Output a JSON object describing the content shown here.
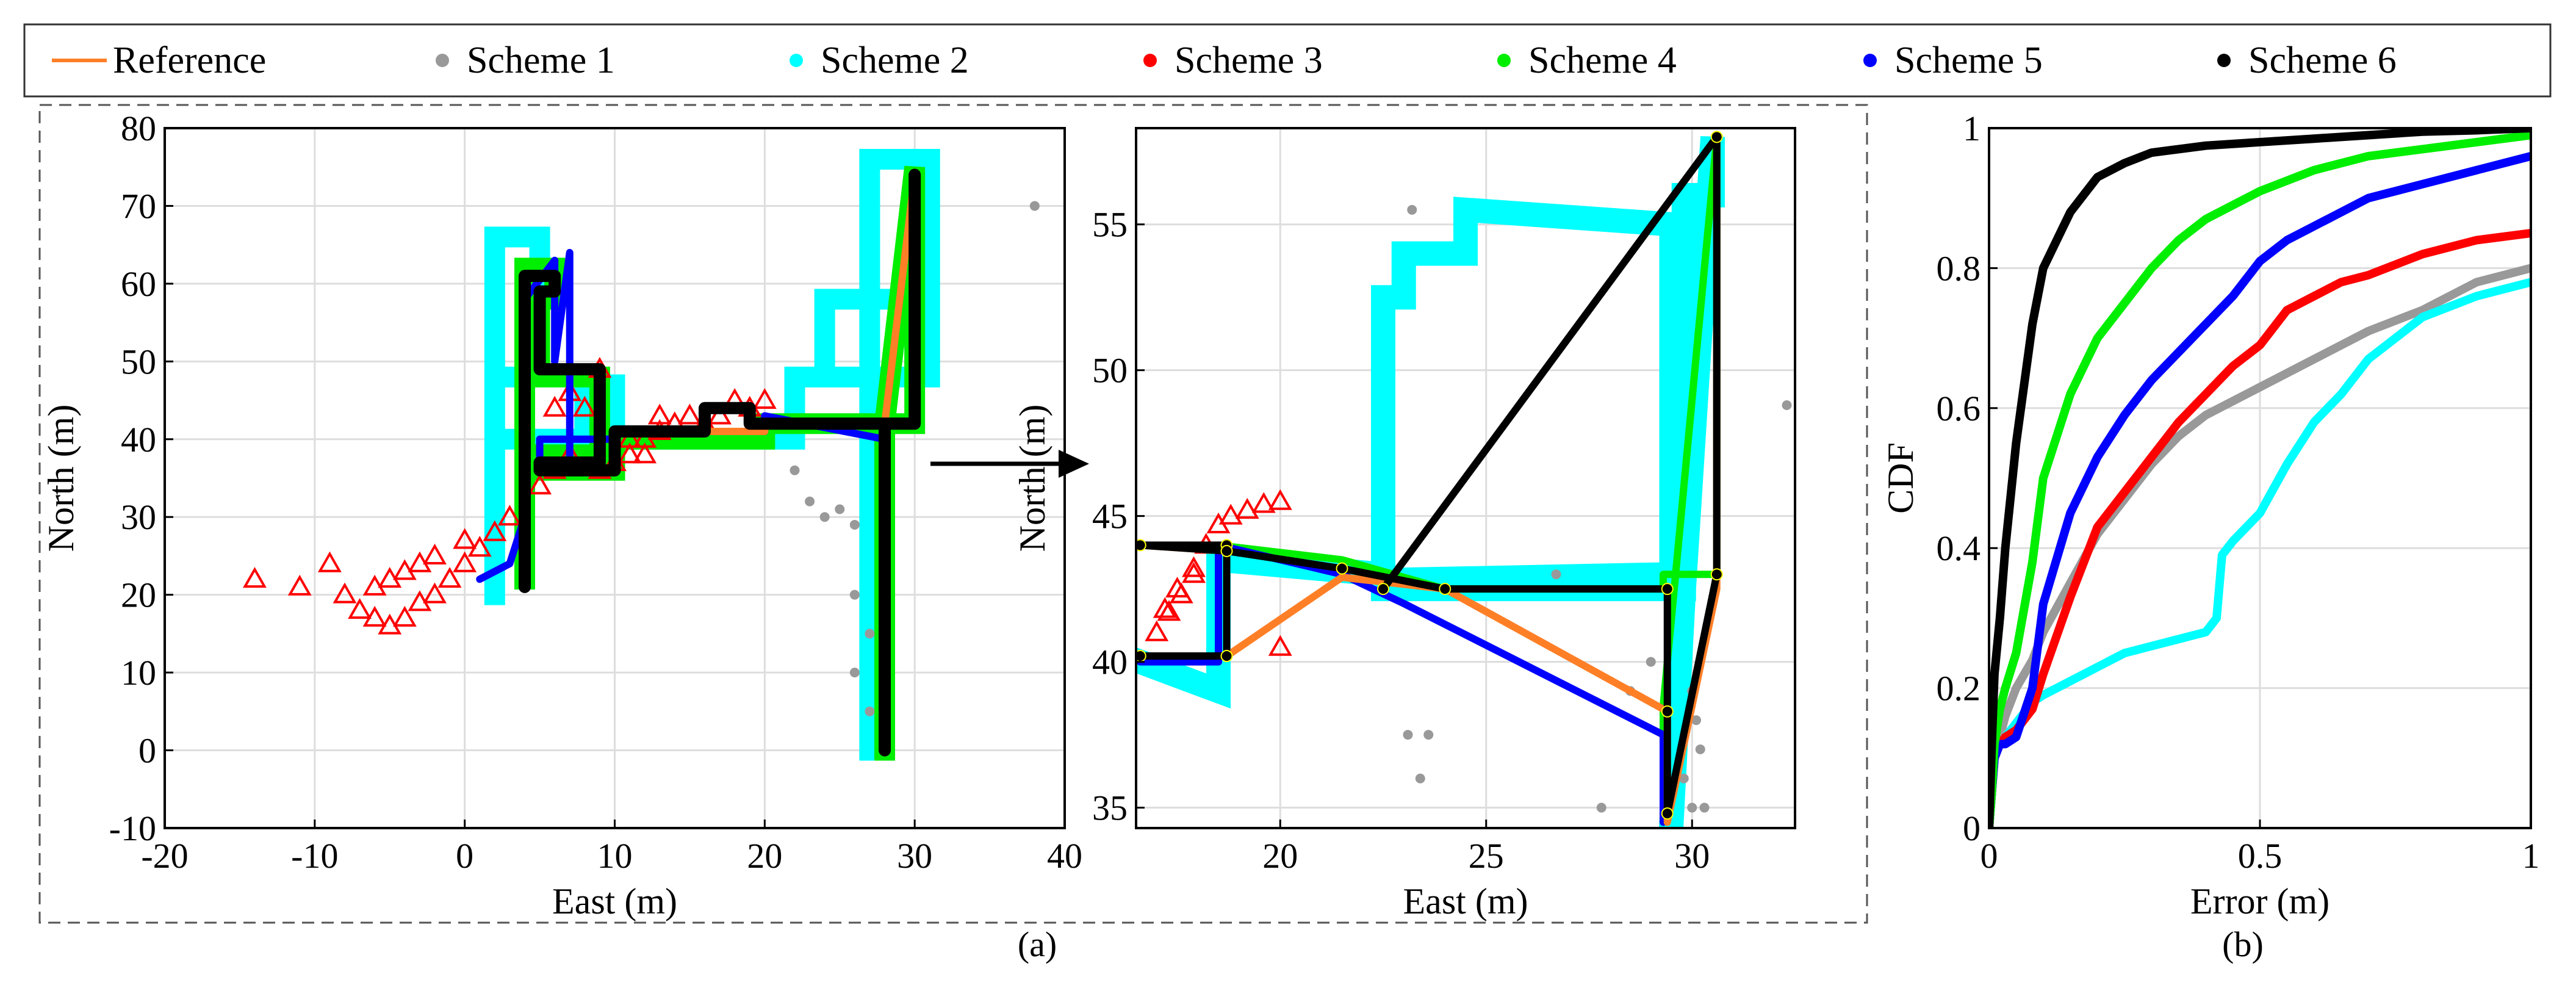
{
  "legend": {
    "entries": [
      {
        "label": "Reference",
        "color": "#ff7f27",
        "marker": "line"
      },
      {
        "label": "Scheme 1",
        "color": "#999999",
        "marker": "dot"
      },
      {
        "label": "Scheme 2",
        "color": "#00ffff",
        "marker": "dot"
      },
      {
        "label": "Scheme 3",
        "color": "#ff0000",
        "marker": "dot"
      },
      {
        "label": "Scheme 4",
        "color": "#00ee00",
        "marker": "dot"
      },
      {
        "label": "Scheme 5",
        "color": "#0000ff",
        "marker": "dot"
      },
      {
        "label": "Scheme 6",
        "color": "#000000",
        "marker": "dot"
      }
    ]
  },
  "panels": {
    "a_label": "(a)",
    "b_label": "(b)"
  },
  "chart_data": [
    {
      "id": "trajectory-full",
      "type": "scatter",
      "xlabel": "East (m)",
      "ylabel": "North (m)",
      "xlim": [
        -20,
        40
      ],
      "ylim": [
        -10,
        80
      ],
      "xticks": [
        -20,
        -10,
        0,
        10,
        20,
        30,
        40
      ],
      "yticks": [
        -10,
        0,
        10,
        20,
        30,
        40,
        50,
        60,
        70,
        80
      ],
      "grid": true,
      "series": [
        {
          "name": "Scheme 2",
          "color": "#00ffff",
          "style": "thick",
          "x": [
            2,
            2,
            5,
            5,
            4,
            4,
            2,
            2,
            8,
            8,
            10,
            10,
            5,
            5,
            10,
            10,
            22,
            22,
            30,
            30,
            24,
            24,
            31,
            31,
            27,
            27
          ],
          "y": [
            20,
            66,
            66,
            60,
            60,
            48,
            48,
            40,
            40,
            47,
            47,
            40,
            40,
            38,
            38,
            40,
            40,
            48,
            48,
            58,
            58,
            48,
            48,
            76,
            76,
            0
          ]
        },
        {
          "name": "Scheme 4",
          "color": "#00ee00",
          "style": "thick",
          "x": [
            4,
            4,
            6,
            6,
            5,
            5,
            9,
            9,
            5,
            5,
            10,
            10,
            20,
            20,
            30,
            30,
            28,
            28
          ],
          "y": [
            22,
            62,
            62,
            58,
            58,
            48,
            48,
            38,
            38,
            36,
            36,
            40,
            40,
            42,
            42,
            75,
            42,
            0
          ]
        },
        {
          "name": "Scheme 3",
          "color": "#ff0000",
          "style": "triangle",
          "x": [
            -14,
            -11,
            -9,
            -8,
            -7,
            -6,
            -5,
            -4,
            -3,
            -2,
            -1,
            0,
            1,
            2,
            3,
            5,
            6,
            7,
            8,
            9,
            11,
            12,
            13,
            14,
            15,
            16,
            17,
            18,
            19,
            20,
            -6,
            -5,
            -4,
            -3,
            -2,
            0,
            6,
            7,
            9,
            10,
            11,
            12,
            13
          ],
          "y": [
            22,
            21,
            24,
            20,
            18,
            17,
            16,
            17,
            19,
            20,
            22,
            24,
            26,
            28,
            30,
            34,
            36,
            38,
            44,
            49,
            40,
            38,
            41,
            42,
            43,
            42,
            43,
            45,
            44,
            45,
            21,
            22,
            23,
            24,
            25,
            27,
            44,
            46,
            36,
            37,
            38,
            40,
            43
          ]
        },
        {
          "name": "Scheme 5",
          "color": "#0000ff",
          "style": "line",
          "x": [
            1,
            3,
            4,
            4,
            6,
            6,
            7,
            7,
            5,
            5,
            10,
            10,
            20,
            20,
            28,
            28
          ],
          "y": [
            22,
            24,
            30,
            58,
            63,
            50,
            64,
            36,
            36,
            40,
            40,
            41,
            41,
            43,
            40,
            0
          ]
        },
        {
          "name": "Scheme 1",
          "color": "#999999",
          "style": "dot",
          "x": [
            38,
            30,
            22,
            23,
            24,
            25,
            26,
            26,
            27,
            27,
            28,
            26
          ],
          "y": [
            70,
            49,
            36,
            32,
            30,
            31,
            29,
            20,
            15,
            5,
            0,
            10
          ]
        },
        {
          "name": "Reference",
          "color": "#ff7f27",
          "style": "line",
          "x": [
            4,
            4,
            6,
            6,
            5,
            5,
            9,
            9,
            5,
            5,
            10,
            10,
            20,
            20,
            30,
            30,
            28,
            28
          ],
          "y": [
            21,
            61,
            61,
            59,
            59,
            49,
            49,
            37,
            37,
            36,
            36,
            41,
            41,
            42,
            42,
            74,
            42,
            0
          ]
        },
        {
          "name": "Scheme 6",
          "color": "#000000",
          "style": "line",
          "x": [
            4,
            4,
            6,
            6,
            5,
            5,
            9,
            9,
            5,
            5,
            10,
            10,
            16,
            16,
            19,
            19,
            20,
            20,
            30,
            30,
            30,
            28,
            28
          ],
          "y": [
            21,
            61,
            61,
            59,
            59,
            49,
            49,
            37,
            37,
            36,
            36,
            41,
            41,
            44,
            44,
            42,
            42,
            42,
            42,
            74,
            42,
            42,
            0
          ]
        }
      ]
    },
    {
      "id": "trajectory-zoom",
      "type": "scatter",
      "xlabel": "East (m)",
      "ylabel": "North (m)",
      "xlim": [
        16.5,
        32.5
      ],
      "ylim": [
        34.3,
        58.3
      ],
      "xticks": [
        20,
        25,
        30
      ],
      "yticks": [
        35,
        40,
        45,
        50,
        55
      ],
      "grid": true,
      "series": [
        {
          "name": "Scheme 2",
          "color": "#00ffff",
          "style": "thick",
          "x": [
            16.6,
            18.5,
            18.5,
            22.5,
            22.5,
            23.0,
            23.0,
            24.5,
            24.5,
            29.5,
            29.5,
            22.5,
            22.5,
            29.8,
            29.8,
            30.5,
            30.5,
            29.8,
            29.5
          ],
          "y": [
            40.0,
            39.0,
            43.5,
            43.0,
            52.5,
            52.5,
            54.0,
            54.0,
            55.5,
            55.0,
            43.0,
            42.8,
            42.5,
            42.5,
            56.0,
            56.0,
            58.0,
            42.5,
            34.5
          ]
        },
        {
          "name": "Scheme 1",
          "color": "#999999",
          "style": "dot",
          "x": [
            32.3,
            23.2,
            23.6,
            26.7,
            23.1,
            23.4,
            30.0,
            30.1,
            30.2,
            29.8,
            30.3,
            30.0,
            27.8,
            28.5,
            29.0
          ],
          "y": [
            48.8,
            55.5,
            37.5,
            43.0,
            37.5,
            36.0,
            39.0,
            38.0,
            37.0,
            36.0,
            35.0,
            35.0,
            35.0,
            39.0,
            40.0
          ]
        },
        {
          "name": "Scheme 3",
          "color": "#ff0000",
          "style": "triangle",
          "x": [
            17.0,
            17.3,
            17.6,
            17.9,
            18.2,
            18.5,
            18.8,
            19.2,
            19.6,
            20.0,
            17.2,
            17.5,
            17.9,
            20.0
          ],
          "y": [
            41.0,
            41.7,
            42.3,
            43.2,
            44.0,
            44.7,
            45.0,
            45.2,
            45.4,
            45.5,
            41.8,
            42.5,
            43.0,
            40.5
          ]
        },
        {
          "name": "Scheme 4",
          "color": "#00ee00",
          "style": "line",
          "x": [
            16.6,
            18.5,
            18.5,
            21.5,
            24.0,
            29.3,
            29.3,
            30.6,
            30.6,
            29.3,
            29.3
          ],
          "y": [
            40.2,
            40.2,
            44.0,
            43.5,
            42.5,
            42.5,
            43.0,
            43.0,
            58.0,
            38.5,
            34.5
          ]
        },
        {
          "name": "Scheme 5",
          "color": "#0000ff",
          "style": "line",
          "x": [
            16.6,
            18.5,
            18.5,
            21.5,
            23.0,
            29.3,
            29.3
          ],
          "y": [
            40.0,
            40.0,
            44.0,
            43.0,
            42.0,
            37.5,
            34.5
          ]
        },
        {
          "name": "Reference",
          "color": "#ff7f27",
          "style": "line",
          "x": [
            16.6,
            18.7,
            18.7,
            21.5,
            24.0,
            29.4,
            29.4,
            30.6,
            30.6
          ],
          "y": [
            44.0,
            43.8,
            40.2,
            42.9,
            42.5,
            38.3,
            34.5,
            42.5,
            58.0
          ]
        },
        {
          "name": "Scheme 6",
          "color": "#000000",
          "style": "dotted",
          "x": [
            16.6,
            18.7,
            18.7,
            16.6,
            18.7,
            21.5,
            24.0,
            29.4,
            29.4,
            29.4,
            30.6,
            30.6,
            22.5
          ],
          "y": [
            40.2,
            40.2,
            44.0,
            44.0,
            43.8,
            43.2,
            42.5,
            42.5,
            38.3,
            34.8,
            43.0,
            58.0,
            42.5
          ]
        }
      ]
    },
    {
      "id": "error-cdf",
      "type": "line",
      "xlabel": "Error (m)",
      "ylabel": "CDF",
      "xlim": [
        0,
        1
      ],
      "ylim": [
        0,
        1
      ],
      "xticks": [
        0,
        0.5,
        1
      ],
      "yticks": [
        0,
        0.2,
        0.4,
        0.6,
        0.8,
        1
      ],
      "grid": true,
      "series": [
        {
          "name": "Scheme 1",
          "color": "#999999",
          "x": [
            0,
            0.005,
            0.01,
            0.02,
            0.03,
            0.05,
            0.08,
            0.1,
            0.15,
            0.2,
            0.25,
            0.3,
            0.35,
            0.4,
            0.5,
            0.6,
            0.7,
            0.8,
            0.9,
            1.0
          ],
          "y": [
            0,
            0.05,
            0.1,
            0.13,
            0.16,
            0.2,
            0.24,
            0.28,
            0.35,
            0.42,
            0.47,
            0.52,
            0.56,
            0.59,
            0.63,
            0.67,
            0.71,
            0.74,
            0.78,
            0.8
          ]
        },
        {
          "name": "Scheme 2",
          "color": "#00ffff",
          "x": [
            0,
            0.005,
            0.01,
            0.02,
            0.05,
            0.08,
            0.1,
            0.15,
            0.2,
            0.25,
            0.3,
            0.35,
            0.4,
            0.42,
            0.43,
            0.45,
            0.5,
            0.55,
            0.6,
            0.65,
            0.7,
            0.8,
            0.9,
            1.0
          ],
          "y": [
            0,
            0.05,
            0.1,
            0.12,
            0.15,
            0.18,
            0.19,
            0.21,
            0.23,
            0.25,
            0.26,
            0.27,
            0.28,
            0.3,
            0.39,
            0.41,
            0.45,
            0.52,
            0.58,
            0.62,
            0.67,
            0.73,
            0.76,
            0.78
          ]
        },
        {
          "name": "Scheme 3",
          "color": "#ff0000",
          "x": [
            0,
            0.005,
            0.01,
            0.02,
            0.03,
            0.05,
            0.08,
            0.1,
            0.15,
            0.2,
            0.25,
            0.3,
            0.35,
            0.4,
            0.45,
            0.5,
            0.55,
            0.6,
            0.65,
            0.7,
            0.8,
            0.9,
            1.0
          ],
          "y": [
            0,
            0.05,
            0.1,
            0.12,
            0.13,
            0.14,
            0.17,
            0.22,
            0.33,
            0.43,
            0.48,
            0.53,
            0.58,
            0.62,
            0.66,
            0.69,
            0.74,
            0.76,
            0.78,
            0.79,
            0.82,
            0.84,
            0.85
          ]
        },
        {
          "name": "Scheme 5",
          "color": "#0000ff",
          "x": [
            0,
            0.005,
            0.01,
            0.02,
            0.03,
            0.05,
            0.08,
            0.1,
            0.15,
            0.2,
            0.25,
            0.3,
            0.35,
            0.4,
            0.45,
            0.5,
            0.55,
            0.6,
            0.7,
            0.8,
            0.9,
            1.0
          ],
          "y": [
            0,
            0.05,
            0.1,
            0.12,
            0.12,
            0.13,
            0.2,
            0.32,
            0.45,
            0.53,
            0.59,
            0.64,
            0.68,
            0.72,
            0.76,
            0.81,
            0.84,
            0.86,
            0.9,
            0.92,
            0.94,
            0.96
          ]
        },
        {
          "name": "Scheme 4",
          "color": "#00ee00",
          "x": [
            0,
            0.005,
            0.01,
            0.02,
            0.03,
            0.05,
            0.08,
            0.1,
            0.15,
            0.2,
            0.25,
            0.3,
            0.35,
            0.4,
            0.5,
            0.6,
            0.7,
            0.8,
            0.9,
            1.0
          ],
          "y": [
            0,
            0.05,
            0.12,
            0.17,
            0.2,
            0.25,
            0.38,
            0.5,
            0.62,
            0.7,
            0.75,
            0.8,
            0.84,
            0.87,
            0.91,
            0.94,
            0.96,
            0.97,
            0.98,
            0.99
          ]
        },
        {
          "name": "Scheme 6",
          "color": "#000000",
          "x": [
            0,
            0.005,
            0.01,
            0.02,
            0.03,
            0.05,
            0.08,
            0.1,
            0.15,
            0.2,
            0.25,
            0.3,
            0.35,
            0.4,
            0.5,
            0.6,
            0.7,
            0.8,
            0.9,
            1.0
          ],
          "y": [
            0,
            0.12,
            0.22,
            0.3,
            0.4,
            0.55,
            0.72,
            0.8,
            0.88,
            0.93,
            0.95,
            0.965,
            0.97,
            0.975,
            0.98,
            0.985,
            0.99,
            0.995,
            0.997,
            1.0
          ]
        }
      ]
    }
  ]
}
